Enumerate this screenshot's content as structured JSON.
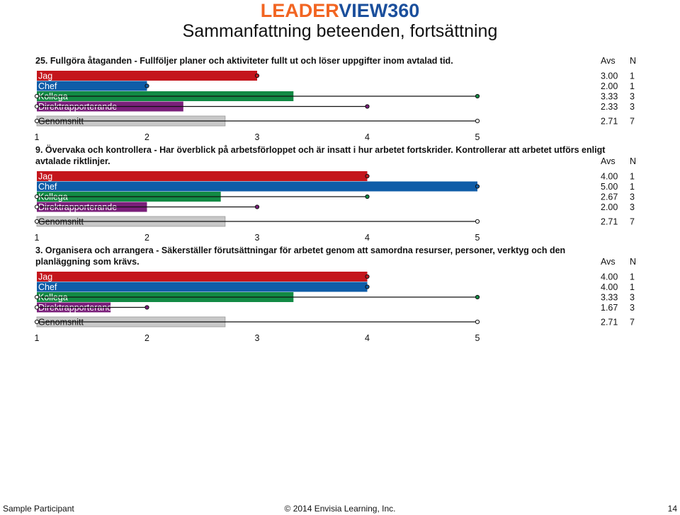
{
  "brand": {
    "part1": "LEADER",
    "part2": "VIEW360"
  },
  "page_title": "Sammanfattning beteenden, fortsättning",
  "colors": {
    "Jag": "#c4161c",
    "Chef": "#0f5da8",
    "Kollega": "#128a44",
    "Direktrapporterande": "#7a1f7a",
    "Genomsnitt": "#c8c8c8"
  },
  "columns": {
    "avg": "Avs",
    "n": "N"
  },
  "chart_data": [
    {
      "type": "bar",
      "orientation": "horizontal",
      "title_lines": [
        "25. Fullgöra åtaganden - Fullföljer planer och aktiviteter fullt ut och löser uppgifter inom avtalad tid."
      ],
      "categories": [
        "Jag",
        "Chef",
        "Kollega",
        "Direktrapporterande",
        "Genomsnitt"
      ],
      "values": [
        3.0,
        2.0,
        3.33,
        2.33,
        2.71
      ],
      "values_text": [
        "3.00",
        "2.00",
        "3.33",
        "2.33",
        "2.71"
      ],
      "n": [
        "1",
        "1",
        "3",
        "3",
        "7"
      ],
      "range": [
        [
          3,
          3
        ],
        [
          2,
          2
        ],
        [
          1,
          5
        ],
        [
          1,
          4
        ],
        [
          1,
          5
        ]
      ],
      "xlim": [
        1,
        5
      ],
      "ticks": [
        "1",
        "2",
        "3",
        "4",
        "5"
      ]
    },
    {
      "type": "bar",
      "orientation": "horizontal",
      "title_lines": [
        "9. Övervaka och kontrollera - Har överblick på arbetsförloppet och är insatt i hur arbetet fortskrider. Kontrollerar att arbetet utförs enligt",
        "avtalade riktlinjer."
      ],
      "categories": [
        "Jag",
        "Chef",
        "Kollega",
        "Direktrapporterande",
        "Genomsnitt"
      ],
      "values": [
        4.0,
        5.0,
        2.67,
        2.0,
        2.71
      ],
      "values_text": [
        "4.00",
        "5.00",
        "2.67",
        "2.00",
        "2.71"
      ],
      "n": [
        "1",
        "1",
        "3",
        "3",
        "7"
      ],
      "range": [
        [
          4,
          4
        ],
        [
          5,
          5
        ],
        [
          1,
          4
        ],
        [
          1,
          3
        ],
        [
          1,
          5
        ]
      ],
      "xlim": [
        1,
        5
      ],
      "ticks": [
        "1",
        "2",
        "3",
        "4",
        "5"
      ]
    },
    {
      "type": "bar",
      "orientation": "horizontal",
      "title_lines": [
        "3. Organisera och arrangera - Säkerställer förutsättningar för arbetet genom att samordna resurser, personer, verktyg och den",
        "planläggning som krävs."
      ],
      "categories": [
        "Jag",
        "Chef",
        "Kollega",
        "Direktrapporterande",
        "Genomsnitt"
      ],
      "values": [
        4.0,
        4.0,
        3.33,
        1.67,
        2.71
      ],
      "values_text": [
        "4.00",
        "4.00",
        "3.33",
        "1.67",
        "2.71"
      ],
      "n": [
        "1",
        "1",
        "3",
        "3",
        "7"
      ],
      "range": [
        [
          4,
          4
        ],
        [
          4,
          4
        ],
        [
          1,
          5
        ],
        [
          1,
          2
        ],
        [
          1,
          5
        ]
      ],
      "xlim": [
        1,
        5
      ],
      "ticks": [
        "1",
        "2",
        "3",
        "4",
        "5"
      ]
    }
  ],
  "footer": {
    "participant": "Sample Participant",
    "copyright": "© 2014 Envisia Learning, Inc.",
    "page_number": "14"
  }
}
